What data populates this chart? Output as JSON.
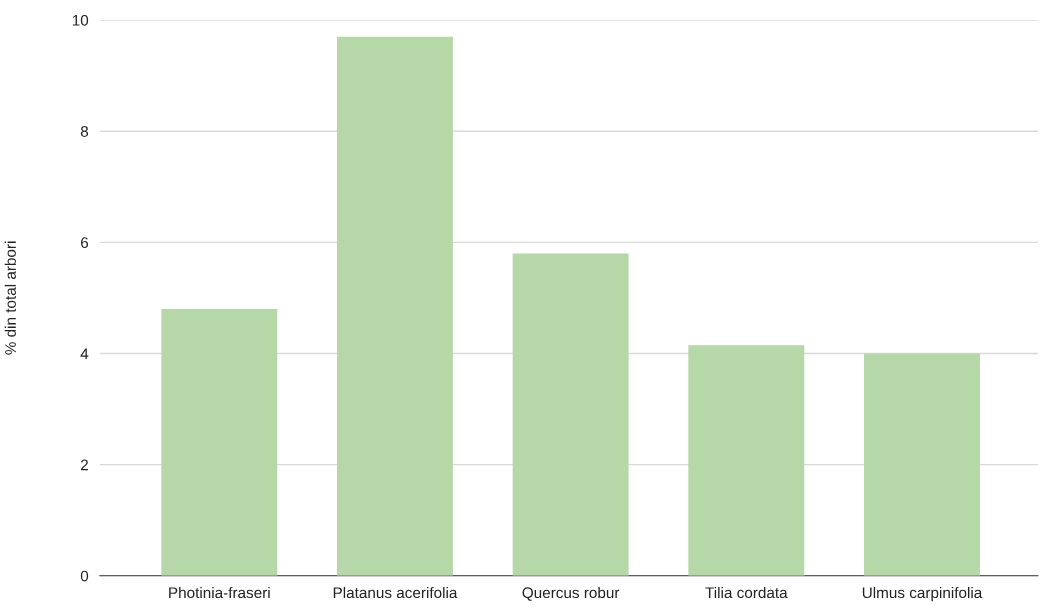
{
  "chart_data": {
    "type": "bar",
    "ylabel": "% din total arbori",
    "categories": [
      "Photinia-fraseri",
      "Platanus acerifolia",
      "Quercus robur",
      "Tilia cordata",
      "Ulmus carpinifolia"
    ],
    "values": [
      4.8,
      9.7,
      5.8,
      4.15,
      4.0
    ],
    "color": "#b6d7a8",
    "ylim": [
      0,
      10
    ],
    "yticks": [
      0,
      2,
      4,
      6,
      8,
      10
    ],
    "grid": "y",
    "legend": false
  }
}
